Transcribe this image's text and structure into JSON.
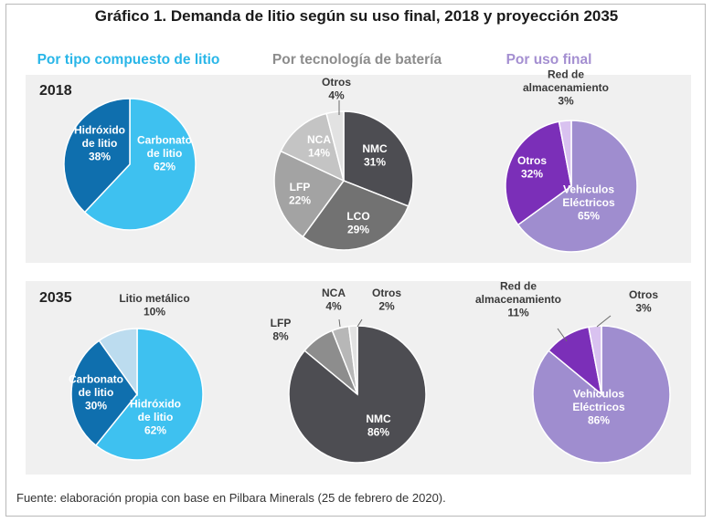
{
  "title": "Gráfico 1. Demanda de litio según su uso final, 2018 y proyección 2035",
  "column_headers": [
    {
      "text": "Por tipo compuesto de litio",
      "color": "#29b6e8"
    },
    {
      "text": "Por tecnología de batería",
      "color": "#8c8c8c"
    },
    {
      "text": "Por uso final",
      "color": "#a48fd1"
    }
  ],
  "years": [
    "2018",
    "2035"
  ],
  "source": "Fuente: elaboración propia con base en Pilbara Minerals (25 de febrero de 2020).",
  "chart_data": [
    {
      "type": "pie",
      "year": "2018",
      "group": "Por tipo compuesto de litio",
      "slices": [
        {
          "label": "Carbonato de litio",
          "value": 62,
          "pct": "62%",
          "color": "#3ec1f0",
          "label_pos": "inside"
        },
        {
          "label": "Hidróxido de litio",
          "value": 38,
          "pct": "38%",
          "color": "#0f6fae",
          "label_pos": "inside"
        }
      ]
    },
    {
      "type": "pie",
      "year": "2018",
      "group": "Por tecnología de batería",
      "slices": [
        {
          "label": "NMC",
          "value": 31,
          "pct": "31%",
          "color": "#4d4d52",
          "label_pos": "inside"
        },
        {
          "label": "LCO",
          "value": 29,
          "pct": "29%",
          "color": "#727272",
          "label_pos": "inside"
        },
        {
          "label": "LFP",
          "value": 22,
          "pct": "22%",
          "color": "#a3a3a3",
          "label_pos": "inside"
        },
        {
          "label": "NCA",
          "value": 14,
          "pct": "14%",
          "color": "#c4c4c4",
          "label_pos": "inside"
        },
        {
          "label": "Otros",
          "value": 4,
          "pct": "4%",
          "color": "#e2e2e2",
          "label_pos": "outside"
        }
      ]
    },
    {
      "type": "pie",
      "year": "2018",
      "group": "Por uso final",
      "slices": [
        {
          "label": "Vehículos Eléctricos",
          "value": 65,
          "pct": "65%",
          "color": "#9f8dcf",
          "label_pos": "inside"
        },
        {
          "label": "Otros",
          "value": 32,
          "pct": "32%",
          "color": "#7b2fb8",
          "label_pos": "inside"
        },
        {
          "label": "Red de almacenamiento",
          "value": 3,
          "pct": "3%",
          "color": "#d9c2f0",
          "label_pos": "outside"
        }
      ]
    },
    {
      "type": "pie",
      "year": "2035",
      "group": "Por tipo compuesto de litio",
      "slices": [
        {
          "label": "Hidróxido de litio",
          "value": 62,
          "pct": "62%",
          "color": "#3ec1f0",
          "label_pos": "inside"
        },
        {
          "label": "Carbonato de litio",
          "value": 30,
          "pct": "30%",
          "color": "#0f6fae",
          "label_pos": "inside"
        },
        {
          "label": "Litio metálico",
          "value": 10,
          "pct": "10%",
          "color": "#bcdcef",
          "label_pos": "outside"
        }
      ]
    },
    {
      "type": "pie",
      "year": "2035",
      "group": "Por tecnología de batería",
      "slices": [
        {
          "label": "NMC",
          "value": 86,
          "pct": "86%",
          "color": "#4d4d52",
          "label_pos": "inside"
        },
        {
          "label": "LFP",
          "value": 8,
          "pct": "8%",
          "color": "#8d8d8d",
          "label_pos": "outside"
        },
        {
          "label": "NCA",
          "value": 4,
          "pct": "4%",
          "color": "#b7b7b7",
          "label_pos": "outside"
        },
        {
          "label": "Otros",
          "value": 2,
          "pct": "2%",
          "color": "#e2e2e2",
          "label_pos": "outside"
        }
      ]
    },
    {
      "type": "pie",
      "year": "2035",
      "group": "Por uso final",
      "slices": [
        {
          "label": "Vehículos Eléctricos",
          "value": 86,
          "pct": "86%",
          "color": "#9f8dcf",
          "label_pos": "inside"
        },
        {
          "label": "Red de almacenamiento",
          "value": 11,
          "pct": "11%",
          "color": "#7b2fb8",
          "label_pos": "outside"
        },
        {
          "label": "Otros",
          "value": 3,
          "pct": "3%",
          "color": "#d9c2f0",
          "label_pos": "outside"
        }
      ]
    }
  ]
}
